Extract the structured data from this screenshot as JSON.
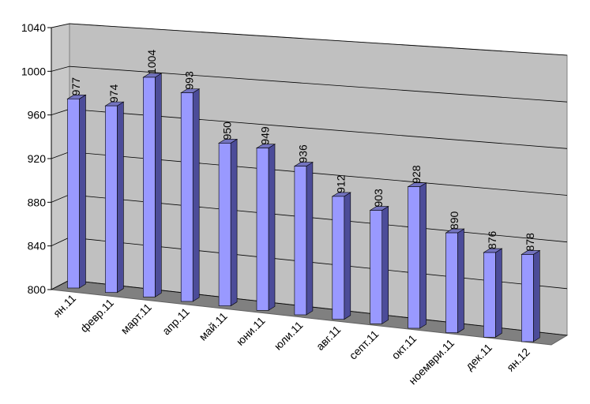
{
  "chart_data": {
    "type": "bar3d",
    "categories": [
      "ян.11",
      "февр.11",
      "март.11",
      "апр.11",
      "май.11",
      "юни.11",
      "юли.11",
      "авг.11",
      "септ.11",
      "окт.11",
      "ноември.11",
      "дек.11",
      "ян.12"
    ],
    "values": [
      977,
      974,
      1004,
      993,
      950,
      949,
      936,
      912,
      903,
      928,
      890,
      876,
      878
    ],
    "color": "#9999ff",
    "ylim": [
      800,
      1040
    ],
    "yticks": [
      800,
      840,
      880,
      920,
      960,
      1000,
      1040
    ],
    "grid": true
  }
}
